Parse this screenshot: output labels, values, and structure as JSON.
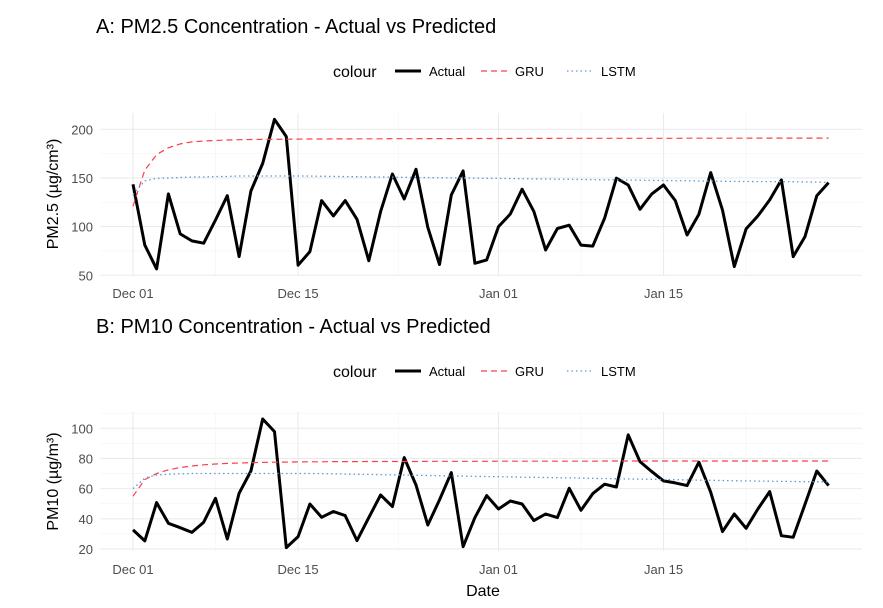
{
  "chart_data": [
    {
      "type": "line",
      "title": "A: PM2.5 Concentration - Actual vs Predicted",
      "xlabel": "",
      "ylabel": "PM2.5 (µg/cm³)",
      "ylim": [
        47,
        217
      ],
      "yticks": [
        50,
        100,
        150,
        200
      ],
      "x_start": "Dec 01",
      "x_ticks": [
        {
          "label": "Dec 01",
          "day": 0
        },
        {
          "label": "Dec 15",
          "day": 14
        },
        {
          "label": "Jan 01",
          "day": 31
        },
        {
          "label": "Jan 15",
          "day": 45
        }
      ],
      "legend": {
        "title": "colour",
        "position": "top",
        "entries": [
          "Actual",
          "GRU",
          "LSTM"
        ]
      },
      "grid": true,
      "series": [
        {
          "name": "Actual",
          "color": "#000000",
          "style": "solid",
          "values": [
            143.5,
            81,
            56.5,
            133.6,
            92.5,
            85.3,
            82.9,
            106.8,
            131.8,
            69.2,
            136.6,
            165,
            210.3,
            192.5,
            60.3,
            74.3,
            126.7,
            111,
            126.7,
            107.5,
            65,
            115.4,
            154.1,
            128.4,
            158.9,
            99.3,
            61,
            132.5,
            157.2,
            62.3,
            65.8,
            100,
            113,
            138.4,
            115.4,
            76,
            98,
            101.4,
            81,
            80,
            108.6,
            149.7,
            142.8,
            117.8,
            133.6,
            142.8,
            126.7,
            91.4,
            112.7,
            155.5,
            117,
            58.9,
            97.6,
            111,
            127.4,
            148,
            69.2,
            89.7,
            131.8,
            145.2
          ]
        },
        {
          "name": "GRU",
          "color": "#F8424A",
          "style": "dashed",
          "values": [
            121,
            158,
            174,
            181,
            185,
            187,
            188,
            188.5,
            189,
            189.3,
            189.5,
            189.6,
            189.7,
            189.8,
            189.9,
            190,
            190,
            190.1,
            190.1,
            190.2,
            190.2,
            190.2,
            190.3,
            190.3,
            190.3,
            190.4,
            190.4,
            190.4,
            190.5,
            190.5,
            190.5,
            190.5,
            190.6,
            190.6,
            190.6,
            190.6,
            190.7,
            190.7,
            190.7,
            190.7,
            190.7,
            190.8,
            190.8,
            190.8,
            190.8,
            190.8,
            190.8,
            190.9,
            190.9,
            190.9,
            190.9,
            190.9,
            190.9,
            191,
            191,
            191,
            191,
            191,
            191,
            191
          ]
        },
        {
          "name": "LSTM",
          "color": "#5B9BD5",
          "style": "dotted",
          "values": [
            133,
            147,
            149.5,
            150,
            150.5,
            151,
            151,
            151.5,
            151.5,
            152,
            152,
            152,
            152,
            152,
            152,
            151.9,
            151.7,
            151.6,
            151.4,
            151.3,
            151.1,
            151,
            150.8,
            150.7,
            150.5,
            150.4,
            150.2,
            150.1,
            149.9,
            149.8,
            149.6,
            149.5,
            149.3,
            149.2,
            149,
            148.9,
            148.7,
            148.6,
            148.4,
            148.3,
            148.1,
            148,
            147.8,
            147.7,
            147.5,
            147.4,
            147.2,
            147.1,
            146.9,
            146.8,
            146.6,
            146.5,
            146.4,
            146.3,
            146.2,
            146.1,
            146,
            145.8,
            145.7,
            145.5
          ]
        }
      ]
    },
    {
      "type": "line",
      "title": "B: PM10 Concentration - Actual vs Predicted",
      "xlabel": "Date",
      "ylabel": "PM10 (µg/m³)",
      "ylim": [
        18,
        108
      ],
      "yticks": [
        20,
        40,
        60,
        80,
        100
      ],
      "x_start": "Dec 01",
      "x_ticks": [
        {
          "label": "Dec 01",
          "day": 0
        },
        {
          "label": "Dec 15",
          "day": 14
        },
        {
          "label": "Jan 01",
          "day": 31
        },
        {
          "label": "Jan 15",
          "day": 45
        }
      ],
      "legend": {
        "title": "colour",
        "position": "top",
        "entries": [
          "Actual",
          "GRU",
          "LSTM"
        ]
      },
      "grid": true,
      "series": [
        {
          "name": "Actual",
          "color": "#000000",
          "style": "solid",
          "values": [
            32.6,
            25.3,
            50.7,
            37,
            34.1,
            31,
            37.7,
            53.6,
            26.6,
            56.9,
            71.7,
            106.2,
            97.8,
            20.9,
            28.2,
            49.8,
            41,
            44.8,
            42.1,
            25.5,
            40.8,
            55.8,
            48.1,
            80.6,
            62.4,
            35.9,
            52.5,
            70.6,
            21.5,
            40.8,
            55.4,
            46.5,
            51.8,
            49.8,
            38.8,
            43.2,
            40.8,
            60.2,
            45.6,
            56.7,
            62.9,
            61.1,
            95.6,
            77.9,
            71.3,
            65.1,
            63.8,
            62,
            77.5,
            57.6,
            31.5,
            43.2,
            33.7,
            46.5,
            58,
            28.8,
            27.7,
            49.6,
            71.7,
            62
          ]
        },
        {
          "name": "GRU",
          "color": "#F8424A",
          "style": "dashed",
          "values": [
            55,
            66,
            70,
            72.5,
            74,
            75,
            75.8,
            76.3,
            76.7,
            77,
            77.2,
            77.4,
            77.5,
            77.6,
            77.7,
            77.8,
            77.8,
            77.9,
            77.9,
            77.9,
            78,
            78,
            78,
            78,
            78,
            78.1,
            78.1,
            78.1,
            78.1,
            78.1,
            78.1,
            78.2,
            78.2,
            78.2,
            78.2,
            78.2,
            78.2,
            78.2,
            78.2,
            78.2,
            78.3,
            78.3,
            78.3,
            78.3,
            78.3,
            78.3,
            78.3,
            78.3,
            78.3,
            78.3,
            78.3,
            78.3,
            78.3,
            78.3,
            78.3,
            78.3,
            78.3,
            78.3,
            78.3,
            78.3
          ]
        },
        {
          "name": "LSTM",
          "color": "#5B9BD5",
          "style": "dotted",
          "values": [
            60,
            67,
            69,
            69.5,
            69.8,
            70,
            70,
            70,
            70,
            70,
            70,
            70,
            70,
            70,
            70,
            70,
            69.9,
            69.8,
            69.6,
            69.5,
            69.4,
            69.2,
            69.1,
            69,
            68.8,
            68.7,
            68.6,
            68.4,
            68.3,
            68.2,
            68,
            67.9,
            67.8,
            67.6,
            67.5,
            67.4,
            67.2,
            67.1,
            67,
            66.8,
            66.7,
            66.6,
            66.4,
            66.3,
            66.2,
            66,
            65.9,
            65.8,
            65.6,
            65.5,
            65.4,
            65.2,
            65.1,
            65,
            64.9,
            64.8,
            64.7,
            64.6,
            64.5,
            64.5
          ]
        }
      ]
    }
  ]
}
